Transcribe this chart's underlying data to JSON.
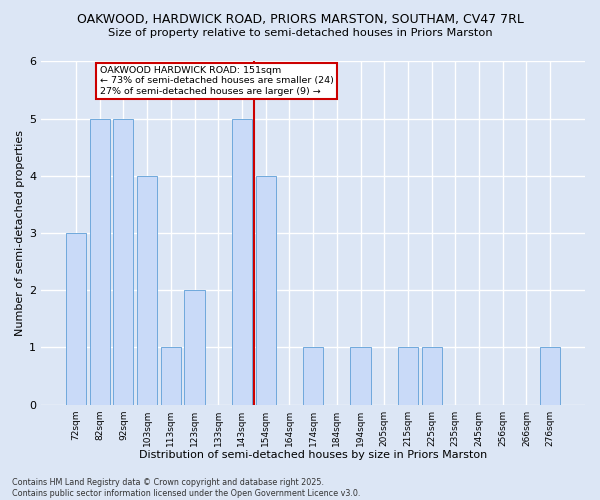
{
  "title_line1": "OAKWOOD, HARDWICK ROAD, PRIORS MARSTON, SOUTHAM, CV47 7RL",
  "title_line2": "Size of property relative to semi-detached houses in Priors Marston",
  "bar_labels": [
    "72sqm",
    "82sqm",
    "92sqm",
    "103sqm",
    "113sqm",
    "123sqm",
    "133sqm",
    "143sqm",
    "154sqm",
    "164sqm",
    "174sqm",
    "184sqm",
    "194sqm",
    "205sqm",
    "215sqm",
    "225sqm",
    "235sqm",
    "245sqm",
    "256sqm",
    "266sqm",
    "276sqm"
  ],
  "bar_values": [
    3,
    5,
    5,
    4,
    1,
    2,
    0,
    5,
    4,
    0,
    1,
    0,
    1,
    0,
    1,
    1,
    0,
    0,
    0,
    0,
    1
  ],
  "bar_color": "#c9daf8",
  "bar_edge_color": "#6fa8dc",
  "vline_color": "#cc0000",
  "annotation_title": "OAKWOOD HARDWICK ROAD: 151sqm",
  "annotation_line2": "← 73% of semi-detached houses are smaller (24)",
  "annotation_line3": "27% of semi-detached houses are larger (9) →",
  "annotation_box_color": "#cc0000",
  "xlabel": "Distribution of semi-detached houses by size in Priors Marston",
  "ylabel": "Number of semi-detached properties",
  "ylim": [
    0,
    6
  ],
  "yticks": [
    0,
    1,
    2,
    3,
    4,
    5,
    6
  ],
  "footer_line1": "Contains HM Land Registry data © Crown copyright and database right 2025.",
  "footer_line2": "Contains public sector information licensed under the Open Government Licence v3.0.",
  "bg_color": "#dce6f5",
  "plot_bg_color": "#dce6f5",
  "grid_color": "#ffffff",
  "vline_bar_index": 8
}
